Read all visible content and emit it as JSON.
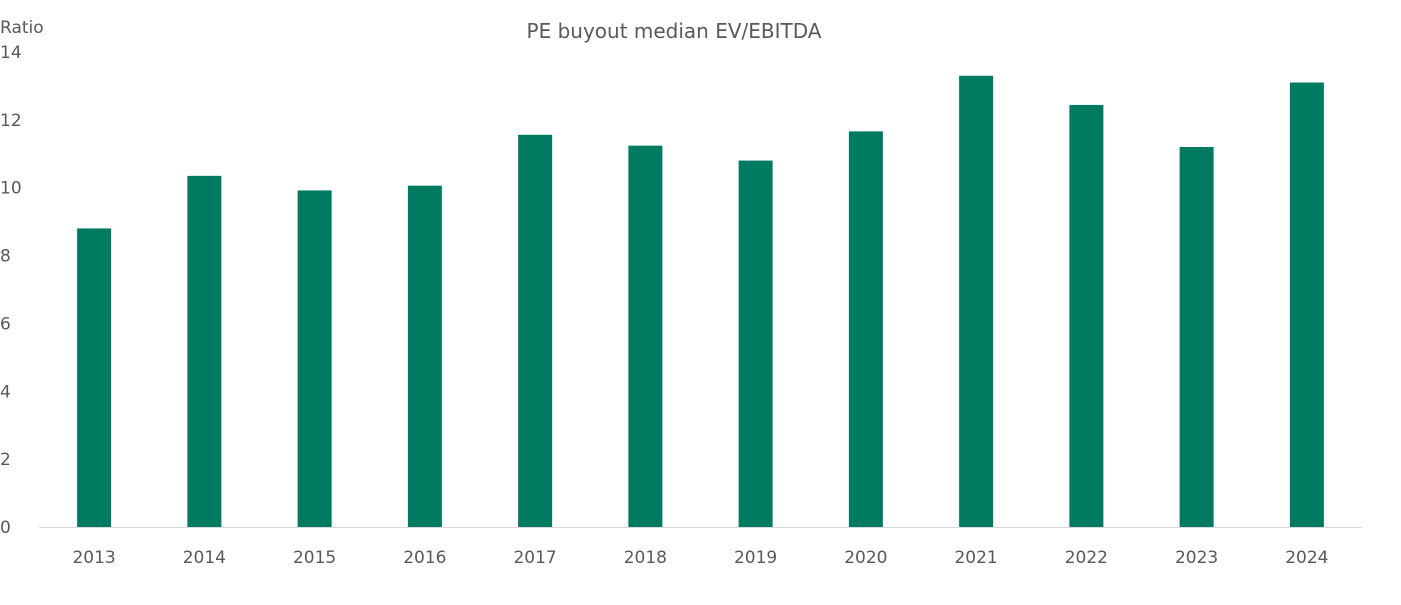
{
  "chart_data": {
    "type": "bar",
    "title": "PE buyout median EV/EBITDA",
    "ylabel": "Ratio",
    "xlabel": "",
    "ylim": [
      0,
      14
    ],
    "yticks": [
      0,
      2,
      4,
      6,
      8,
      10,
      12,
      14
    ],
    "grid": false,
    "legend": "none",
    "categories": [
      "2013",
      "2014",
      "2015",
      "2016",
      "2017",
      "2018",
      "2019",
      "2020",
      "2021",
      "2022",
      "2023",
      "2024"
    ],
    "series": [
      {
        "values": [
          8.8,
          10.35,
          9.92,
          10.06,
          11.56,
          11.24,
          10.8,
          11.66,
          13.3,
          12.44,
          11.2,
          13.1
        ],
        "color": "#007A61"
      }
    ],
    "axis_color": "#D9D9D9"
  }
}
